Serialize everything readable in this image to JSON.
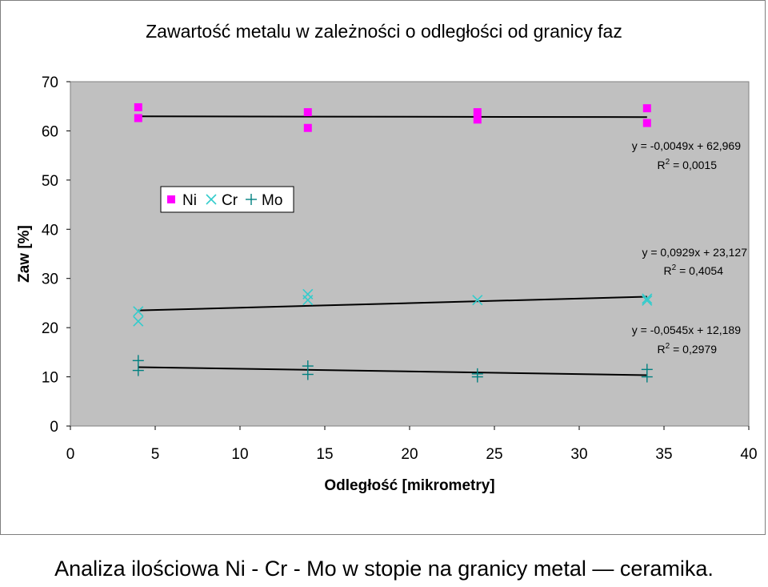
{
  "chart_data": {
    "type": "scatter",
    "title": "Zawartość metalu w zależności o odległości od granicy faz",
    "xlabel": "Odległość [mikrometry]",
    "ylabel": "Zaw [%]",
    "xlim": [
      0,
      40
    ],
    "ylim": [
      0,
      70
    ],
    "xticks": [
      "0",
      "5",
      "10",
      "15",
      "20",
      "25",
      "30",
      "35",
      "40"
    ],
    "yticks": [
      "0",
      "10",
      "20",
      "30",
      "40",
      "50",
      "60",
      "70"
    ],
    "grid": false,
    "legend_placement": "upper-left, inside plot",
    "plot_background": "#c0c0c0",
    "series": [
      {
        "name": "Ni",
        "marker": "square",
        "color": "#ff00ff",
        "points": [
          [
            4,
            64.8
          ],
          [
            4,
            62.6
          ],
          [
            14,
            63.8
          ],
          [
            14,
            60.6
          ],
          [
            24,
            63.8
          ],
          [
            24,
            62.3
          ],
          [
            34,
            64.6
          ],
          [
            34,
            61.6
          ]
        ]
      },
      {
        "name": "Cr",
        "marker": "x",
        "color": "#33cccc",
        "points": [
          [
            4,
            23.3
          ],
          [
            4,
            21.3
          ],
          [
            14,
            26.8
          ],
          [
            14,
            25.6
          ],
          [
            24,
            25.6
          ],
          [
            34,
            25.9
          ],
          [
            34,
            25.5
          ]
        ]
      },
      {
        "name": "Mo",
        "marker": "plus",
        "color": "#008080",
        "points": [
          [
            4,
            13.3
          ],
          [
            4,
            11.3
          ],
          [
            14,
            12.2
          ],
          [
            14,
            10.5
          ],
          [
            24,
            10.6
          ],
          [
            24,
            10.0
          ],
          [
            34,
            11.5
          ],
          [
            34,
            10.0
          ]
        ]
      }
    ],
    "trendlines": [
      {
        "slope": -0.0049,
        "intercept": 62.969,
        "x_range": [
          4,
          34
        ],
        "equation": "y = -0,0049x + 62,969",
        "r2_text": "R",
        "r2_sup": "2",
        "r2_value": " = 0,0015"
      },
      {
        "slope": 0.0929,
        "intercept": 23.127,
        "x_range": [
          4,
          34
        ],
        "equation": "y = 0,0929x + 23,127",
        "r2_text": "R",
        "r2_sup": "2",
        "r2_value": " = 0,4054"
      },
      {
        "slope": -0.0545,
        "intercept": 12.189,
        "x_range": [
          4,
          34
        ],
        "equation": "y = -0,0545x + 12,189",
        "r2_text": "R",
        "r2_sup": "2",
        "r2_value": " = 0,2979"
      }
    ]
  },
  "caption": "Analiza ilościowa Ni - Cr - Mo w stopie na granicy metal — ceramika."
}
